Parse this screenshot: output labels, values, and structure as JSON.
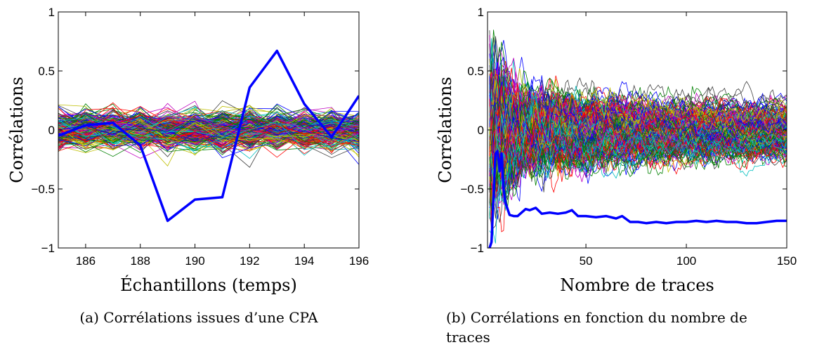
{
  "chart_data": [
    {
      "type": "line",
      "title": "",
      "caption": "(a) Corrélations issues d’une CPA",
      "xlabel": "Échantillons (temps)",
      "ylabel": "Corrélations",
      "xlim": [
        185,
        196
      ],
      "ylim": [
        -1,
        1
      ],
      "xticks": [
        186,
        188,
        190,
        192,
        194,
        196
      ],
      "xtick_labels": [
        "186",
        "188",
        "190",
        "192",
        "194",
        "196"
      ],
      "yticks": [
        1,
        0.5,
        0,
        -0.5,
        -1
      ],
      "ytick_labels": [
        "1",
        "0.5",
        "0",
        "−0.5",
        "−1"
      ],
      "grid": false,
      "background_series": {
        "description_count": 256,
        "typical_range": [
          -0.25,
          0.25
        ],
        "max_abs": 0.33
      },
      "highlight_series": {
        "color": "#0000ff",
        "x": [
          185,
          186,
          187,
          188,
          189,
          190,
          191,
          192,
          193,
          194,
          195,
          196
        ],
        "values": [
          -0.05,
          0.04,
          0.06,
          -0.13,
          -0.77,
          -0.59,
          -0.57,
          0.36,
          0.67,
          0.22,
          -0.06,
          0.29
        ]
      }
    },
    {
      "type": "line",
      "title": "",
      "caption_line1": "(b) Corrélations en fonction du nombre de",
      "caption_line2": "traces",
      "xlabel": "Nombre de traces",
      "ylabel": "Corrélations",
      "xlim": [
        1,
        150
      ],
      "ylim": [
        -1,
        1
      ],
      "xticks": [
        50,
        100,
        150
      ],
      "xtick_labels": [
        "50",
        "100",
        "150"
      ],
      "yticks": [
        1,
        0.5,
        0,
        -0.5,
        -1
      ],
      "ytick_labels": [
        "1",
        "0.5",
        "0",
        "−0.5",
        "−1"
      ],
      "grid": false,
      "background_series": {
        "description_count": 256,
        "final_range": [
          -0.27,
          0.28
        ]
      },
      "highlight_series": {
        "color": "#0000ff",
        "x": [
          2,
          3,
          4,
          5,
          6,
          7,
          8,
          9,
          10,
          12,
          14,
          16,
          18,
          20,
          22,
          25,
          28,
          32,
          36,
          40,
          43,
          46,
          50,
          55,
          60,
          65,
          68,
          72,
          76,
          80,
          85,
          90,
          95,
          100,
          105,
          110,
          115,
          120,
          125,
          130,
          135,
          140,
          145,
          150
        ],
        "values": [
          -1.0,
          -0.95,
          -0.55,
          -0.2,
          -0.18,
          -0.35,
          -0.2,
          -0.5,
          -0.62,
          -0.72,
          -0.73,
          -0.73,
          -0.7,
          -0.67,
          -0.68,
          -0.66,
          -0.71,
          -0.7,
          -0.71,
          -0.7,
          -0.68,
          -0.73,
          -0.73,
          -0.74,
          -0.73,
          -0.75,
          -0.73,
          -0.78,
          -0.78,
          -0.79,
          -0.78,
          -0.79,
          -0.78,
          -0.78,
          -0.77,
          -0.78,
          -0.77,
          -0.78,
          -0.78,
          -0.79,
          -0.79,
          -0.78,
          -0.77,
          -0.77
        ]
      }
    }
  ],
  "palette": [
    "#0000ff",
    "#008000",
    "#ff0000",
    "#00bfbf",
    "#bf00bf",
    "#bfbf00",
    "#404040"
  ]
}
